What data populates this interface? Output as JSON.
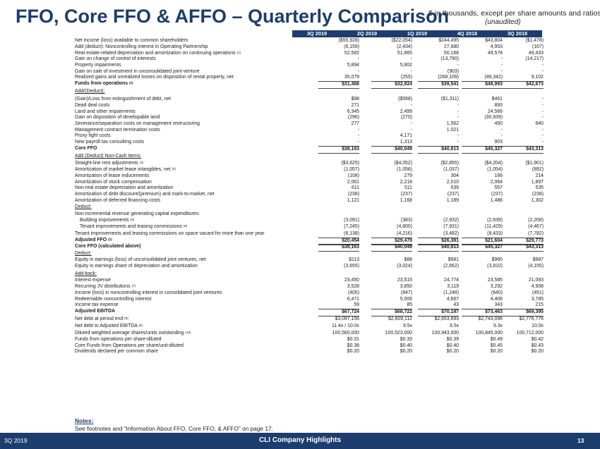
{
  "title": "FFO, Core FFO & AFFO – Quarterly Comparison",
  "units_note": "$ in thousands, except per share amounts and ratios",
  "unaudited": "(unaudited)",
  "columns": [
    "3Q 2019",
    "2Q 2019",
    "1Q 2019",
    "4Q 2018",
    "3Q 2018"
  ],
  "rows": [
    {
      "label": "Net income (loss) available to common shareholders",
      "values": [
        "($55,928)",
        "($22,054)",
        "$244,495",
        "$43,804",
        "($1,478)"
      ]
    },
    {
      "label": "Add (deduct): Noncontrolling interest in Operating Partnership",
      "values": [
        "(6,159)",
        "(2,434)",
        "27,680",
        "4,953",
        "(167)"
      ]
    },
    {
      "label": "Real estate-related depreciation and amortization on continuing operations",
      "note": "(1)",
      "values": [
        "52,582",
        "51,865",
        "50,168",
        "49,578",
        "49,433"
      ]
    },
    {
      "label": "Gain on change of control of interests",
      "values": [
        "-",
        "-",
        "(13,790)",
        "-",
        "(14,217)"
      ]
    },
    {
      "label": "Property impairments",
      "values": [
        "5,894",
        "5,802",
        "-",
        "-",
        "-"
      ]
    },
    {
      "label": "Gain on sale of investment in unconsolidated joint venture",
      "values": [
        "-",
        "-",
        "(903)",
        "-",
        "-"
      ]
    },
    {
      "label": "Realized gains and unrealized losses on disposition of rental property, net",
      "values": [
        "35,079",
        "(255)",
        "(268,109)",
        "(49,342)",
        "9,102"
      ],
      "style": "uline"
    },
    {
      "label": "Funds from operations",
      "note": "(2)",
      "values": [
        "$31,468",
        "$32,924",
        "$39,541",
        "$48,993",
        "$42,673"
      ],
      "style": "bold boxed"
    },
    {
      "label": "Add/(Deduct):",
      "values": [],
      "style": "hdr"
    },
    {
      "label": "(Gain)/Loss from extinguishment of debt, net",
      "values": [
        "$98",
        "($588)",
        "($1,311)",
        "$461",
        "-"
      ]
    },
    {
      "label": "Dead deal costs",
      "values": [
        "271",
        "-",
        "-",
        "893",
        "-"
      ]
    },
    {
      "label": "Land and other impairments",
      "values": [
        "6,345",
        "2,499",
        "-",
        "24,566",
        "-"
      ]
    },
    {
      "label": "Gain on disposition of developable land",
      "values": [
        "(296)",
        "(270)",
        "-",
        "(30,939)",
        "-"
      ]
    },
    {
      "label": "Severance/separation costs on management restructuring",
      "values": [
        "277",
        "-",
        "1,562",
        "450",
        "640"
      ]
    },
    {
      "label": "Management contract termination costs",
      "values": [
        "-",
        "-",
        "1,021",
        "-",
        "-"
      ]
    },
    {
      "label": "Proxy fight costs",
      "values": [
        "-",
        "4,171",
        "-",
        "-",
        "-"
      ]
    },
    {
      "label": "New payroll tax consulting costs",
      "values": [
        "-",
        "1,313",
        "-",
        "903",
        "-"
      ],
      "style": "uline"
    },
    {
      "label": "Core FFO",
      "values": [
        "$38,163",
        "$40,049",
        "$40,813",
        "$45,327",
        "$43,313"
      ],
      "style": "bold boxed"
    },
    {
      "label": "Add (Deduct) Non-Cash Items:",
      "values": [],
      "style": "hdr"
    },
    {
      "label": "Straight-line rent adjustments",
      "note": "(3)",
      "values": [
        "($3,625)",
        "($4,052)",
        "($2,855)",
        "($4,204)",
        "($1,901)"
      ]
    },
    {
      "label": "Amortization of market lease intangibles, net",
      "note": "(4)",
      "values": [
        "(1,057)",
        "(1,058)",
        "(1,037)",
        "(1,054)",
        "(892)"
      ]
    },
    {
      "label": "Amortization of lease inducements",
      "values": [
        "(108)",
        "279",
        "304",
        "166",
        "214"
      ]
    },
    {
      "label": "Amortization of stock compensation",
      "values": [
        "2,061",
        "2,218",
        "2,010",
        "2,064",
        "1,897"
      ]
    },
    {
      "label": "Non-real estate depreciation and amortization",
      "values": [
        "611",
        "511",
        "539",
        "557",
        "535"
      ]
    },
    {
      "label": "Amortization of debt discount/(premium) and mark-to-market, net",
      "values": [
        "(238)",
        "(237)",
        "(237)",
        "(237)",
        "(238)"
      ]
    },
    {
      "label": "Amortization of deferred financing costs",
      "values": [
        "1,121",
        "1,168",
        "1,189",
        "1,486",
        "1,302"
      ]
    },
    {
      "label": "Deduct:",
      "values": [],
      "style": "hdr"
    },
    {
      "label": "Non-incremental revenue generating capital expenditures:",
      "values": []
    },
    {
      "label": "Building improvements",
      "note": "(5)",
      "values": [
        "(3,091)",
        "(383)",
        "(2,932)",
        "(2,639)",
        "(2,208)"
      ],
      "style": "indent"
    },
    {
      "label": "Tenant improvements and leasing commissions",
      "note": "(6)",
      "values": [
        "(7,245)",
        "(4,800)",
        "(7,931)",
        "(11,429)",
        "(4,467)"
      ],
      "style": "indent"
    },
    {
      "label": "Tenant improvements and leasing commissions on space vacant for more than one year",
      "values": [
        "(6,138)",
        "(4,216)",
        "(3,482)",
        "(8,433)",
        "(7,782)"
      ],
      "style": "uline"
    },
    {
      "label": "Adjusted FFO",
      "note": "(2)",
      "values": [
        "$20,454",
        "$29,479",
        "$26,381",
        "$21,604",
        "$29,773"
      ],
      "style": "bold boxed"
    },
    {
      "label": "Core FFO (calculated above)",
      "values": [
        "$38,163",
        "$40,049",
        "$40,813",
        "$45,327",
        "$43,313"
      ],
      "style": "bold boxed"
    },
    {
      "label": "Deduct:",
      "values": [],
      "style": "hdr"
    },
    {
      "label": "Equity in earnings (loss) of unconsolidated joint ventures, net",
      "values": [
        "$113",
        "$88",
        "$681",
        "$960",
        "$687"
      ]
    },
    {
      "label": "Equity in earnings share of depreciation and amortization",
      "values": [
        "(3,655)",
        "(3,024)",
        "(2,662)",
        "(3,810)",
        "(4,155)"
      ]
    },
    {
      "label": "Add-back:",
      "values": [],
      "style": "hdr"
    },
    {
      "label": "Interest expense",
      "values": [
        "23,450",
        "23,515",
        "24,774",
        "23,585",
        "21,093"
      ]
    },
    {
      "label": "Recurring JV distributions",
      "note": "(7)",
      "values": [
        "3,528",
        "3,850",
        "3,119",
        "3,292",
        "4,908"
      ]
    },
    {
      "label": "Income (loss) in noncontrolling interest in consolidated joint ventures",
      "values": [
        "(405)",
        "(847)",
        "(1,248)",
        "(640)",
        "(451)"
      ]
    },
    {
      "label": "Redeemable noncontrolling interest",
      "values": [
        "6,471",
        "5,006",
        "4,667",
        "4,406",
        "3,785"
      ]
    },
    {
      "label": "Income tax expense",
      "values": [
        "59",
        "85",
        "43",
        "343",
        "215"
      ],
      "style": "uline"
    },
    {
      "label": "Adjusted EBITDA",
      "values": [
        "$67,724",
        "$68,722",
        "$70,187",
        "$73,463",
        "$69,395"
      ],
      "style": "bold boxed"
    },
    {
      "label": "Net debt at period end",
      "note": "(8)",
      "values": [
        "$3,097,156",
        "$2,609,112",
        "$2,653,693",
        "$2,743,096",
        "$2,776,776"
      ]
    },
    {
      "label": "Net debt to Adjusted EBITDA",
      "note": "(9)",
      "values": [
        "11.4x / 10.0x",
        "9.5x",
        "9.5x",
        "9.3x",
        "10.0x"
      ]
    },
    {
      "label": "Diluted weighted average shares/units outstanding",
      "note": "(10)",
      "values": [
        "100,560,000",
        "100,523,000",
        "100,943,000",
        "100,845,000",
        "100,712,000"
      ]
    },
    {
      "label": "Funds from operations per share-diluted",
      "values": [
        "$0.31",
        "$0.33",
        "$0.39",
        "$0.49",
        "$0.42"
      ]
    },
    {
      "label": "Core Funds from Operations per share/unit-diluted",
      "values": [
        "$0.38",
        "$0.40",
        "$0.40",
        "$0.45",
        "$0.43"
      ]
    },
    {
      "label": "Dividends declared per common share",
      "values": [
        "$0.20",
        "$0.20",
        "$0.20",
        "$0.20",
        "$0.20"
      ]
    }
  ],
  "notes_title": "Notes:",
  "notes_text": "See footnotes and “Information About FFO, Core FFO, & AFFO” on page 17.",
  "footer": {
    "left": "3Q 2019",
    "center": "CLI Company Highlights",
    "page": "13"
  }
}
